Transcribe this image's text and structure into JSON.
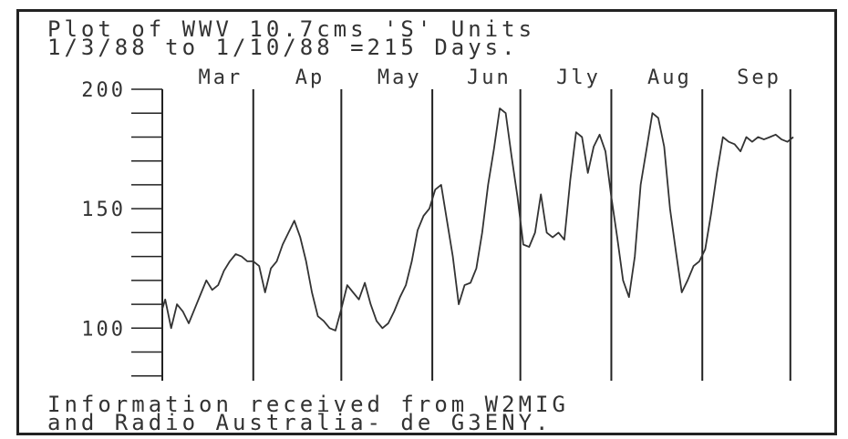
{
  "chart_data": {
    "type": "line",
    "title": "Plot of WWV 10.7cms 'S' Units",
    "subtitle": "1/3/88 to 1/10/88 =215 Days.",
    "footer_line1": "Information received from W2MIG",
    "footer_line2": "and Radio Australia- de G3ENY.",
    "months": [
      "Mar",
      "Ap",
      "May",
      "Jun",
      "Jly",
      "Aug",
      "Sep"
    ],
    "y_ticks": [
      "200",
      "150",
      "100"
    ],
    "ylim": [
      78,
      200
    ],
    "xlim": [
      0,
      215
    ],
    "month_lines": [
      31,
      61,
      92,
      122,
      153,
      184,
      214
    ],
    "grid": false,
    "series": [
      {
        "x": [
          0,
          1,
          3,
          5,
          7,
          9,
          11,
          13,
          15,
          17,
          19,
          21,
          23,
          25,
          27,
          29,
          31,
          33,
          35,
          37,
          39,
          41,
          43,
          45,
          47,
          49,
          51,
          53,
          55,
          57,
          59,
          61,
          63,
          65,
          67,
          69,
          71,
          73,
          75,
          77,
          79,
          81,
          83,
          85,
          87,
          89,
          91,
          93,
          95,
          97,
          99,
          101,
          103,
          105,
          107,
          109,
          111,
          113,
          115,
          117,
          119,
          121,
          123,
          125,
          127,
          129,
          131,
          133,
          135,
          137,
          139,
          141,
          143,
          145,
          147,
          149,
          151,
          153,
          155,
          157,
          159,
          161,
          163,
          165,
          167,
          169,
          171,
          173,
          175,
          177,
          179,
          181,
          183,
          185,
          187,
          189,
          191,
          193,
          195,
          197,
          199,
          201,
          203,
          205,
          207,
          209,
          211,
          213,
          215
        ],
        "values": [
          108,
          112,
          100,
          110,
          107,
          102,
          108,
          114,
          120,
          116,
          118,
          124,
          128,
          131,
          130,
          128,
          128,
          126,
          115,
          125,
          128,
          135,
          140,
          145,
          138,
          128,
          115,
          105,
          103,
          100,
          99,
          108,
          118,
          115,
          112,
          119,
          110,
          103,
          100,
          102,
          107,
          113,
          118,
          128,
          141,
          147,
          150,
          158,
          160,
          145,
          130,
          110,
          118,
          119,
          125,
          140,
          160,
          175,
          192,
          190,
          172,
          155,
          135,
          134,
          140,
          156,
          140,
          138,
          140,
          137,
          162,
          182,
          180,
          165,
          176,
          181,
          174,
          155,
          138,
          120,
          113,
          130,
          160,
          175,
          190,
          188,
          176,
          150,
          132,
          115,
          120,
          126,
          128,
          133,
          148,
          165,
          180,
          178,
          177,
          174,
          180,
          178,
          180,
          179,
          180,
          181,
          179,
          178,
          180
        ]
      }
    ]
  }
}
